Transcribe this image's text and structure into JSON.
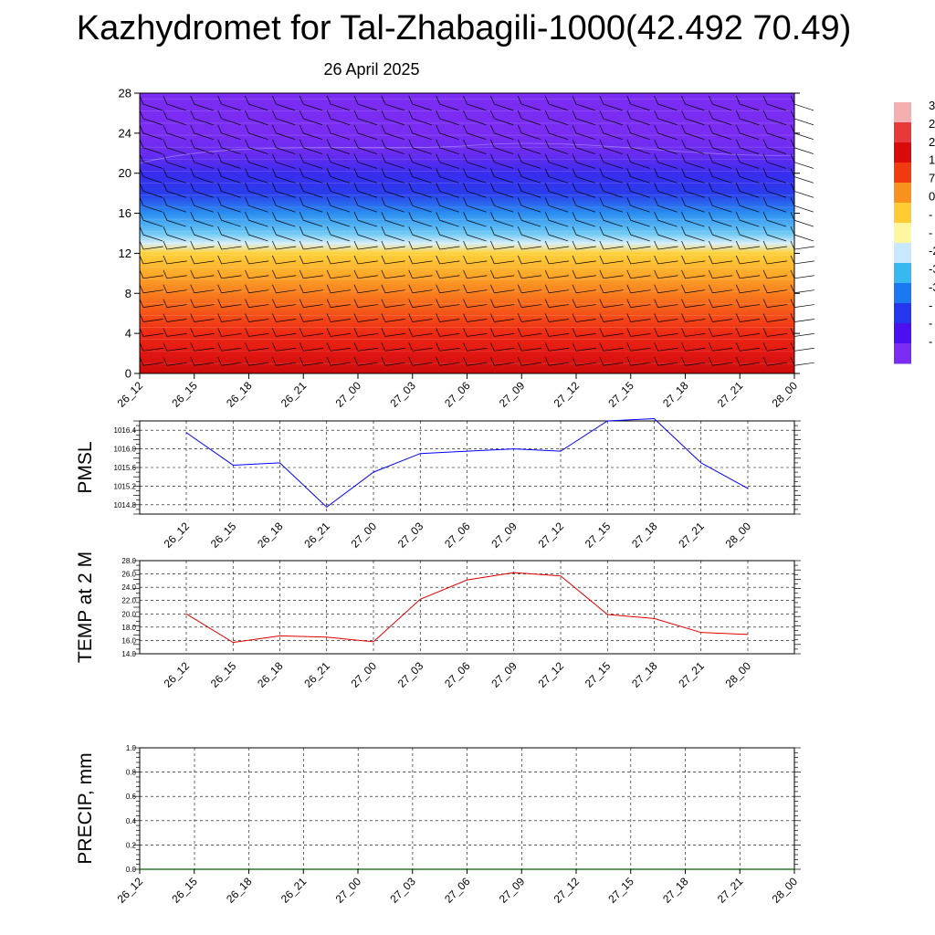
{
  "header": {
    "title": "Kazhydromet for Tal-Zhabagili-1000(42.492 70.49)",
    "subtitle": "26 April 2025"
  },
  "colorbar": {
    "labels": [
      "3",
      "2",
      "2",
      "1",
      "7",
      "0",
      "-",
      "-",
      "-2",
      "-3",
      "-3",
      "-",
      "-",
      "-"
    ],
    "stops": [
      "#f4b0b0",
      "#e8383a",
      "#d80a0a",
      "#f23a10",
      "#f9921c",
      "#ffcc34",
      "#fff7a0",
      "#c8e8ff",
      "#38b8f0",
      "#1c78f0",
      "#2436ee",
      "#4a10f0",
      "#7a2cf2"
    ]
  },
  "chart_data": [
    {
      "type": "heatmap",
      "name": "cross-section",
      "x_ticks": [
        "26_12",
        "26_15",
        "26_18",
        "26_21",
        "27_00",
        "27_03",
        "27_06",
        "27_09",
        "27_12",
        "27_15",
        "27_18",
        "27_21",
        "28_00"
      ],
      "ylim": [
        0,
        28
      ],
      "y_ticks": [
        0,
        4,
        8,
        12,
        16,
        20,
        24,
        28
      ],
      "levels": [
        0,
        2,
        4,
        6,
        8,
        10,
        12,
        13,
        14,
        16,
        18,
        20,
        22,
        24,
        28
      ],
      "level_colors": [
        "#cc0c0a",
        "#e01612",
        "#ee2a14",
        "#f45218",
        "#f87e1e",
        "#fcaa2a",
        "#ffd23a",
        "#d8eef8",
        "#6cc8f4",
        "#2a8ef0",
        "#2a3cec",
        "#3a2cee",
        "#6a2cf0",
        "#7a2cf2",
        "#7a2cf2"
      ],
      "barbs": "wind barbs overlay (black)"
    },
    {
      "type": "line",
      "ylabel": "PMSL",
      "x": [
        "26_12",
        "26_15",
        "26_18",
        "26_21",
        "27_00",
        "27_03",
        "27_06",
        "27_09",
        "27_12",
        "27_15",
        "27_18",
        "27_21",
        "28_00"
      ],
      "y": [
        1016.35,
        1015.65,
        1015.7,
        1014.75,
        1015.5,
        1015.9,
        1015.95,
        1016.0,
        1015.95,
        1016.6,
        1016.65,
        1015.7,
        1015.15
      ],
      "ylim": [
        1014.6,
        1016.6
      ],
      "y_ticks": [
        "1014.8",
        "1015.2",
        "1015.6",
        "1016.0",
        "1016.4"
      ],
      "color": "#0000ff",
      "grid": true
    },
    {
      "type": "line",
      "ylabel": "TEMP at 2 M",
      "x": [
        "26_12",
        "26_15",
        "26_18",
        "26_21",
        "27_00",
        "27_03",
        "27_06",
        "27_09",
        "27_12",
        "27_15",
        "27_18",
        "27_21",
        "28_00"
      ],
      "y": [
        20.0,
        15.7,
        16.7,
        16.5,
        15.8,
        22.2,
        25.1,
        26.2,
        25.7,
        19.9,
        19.3,
        17.2,
        16.9
      ],
      "ylim": [
        14.0,
        28.0
      ],
      "y_ticks": [
        "14.0",
        "16.0",
        "18.0",
        "20.0",
        "22.0",
        "24.0",
        "26.0",
        "28.0"
      ],
      "color": "#e00000",
      "grid": true
    },
    {
      "type": "line",
      "ylabel": "PRECIP, mm",
      "x": [
        "26_12",
        "26_15",
        "26_18",
        "26_21",
        "27_00",
        "27_03",
        "27_06",
        "27_09",
        "27_12",
        "27_15",
        "27_18",
        "27_21",
        "28_00"
      ],
      "y": [
        0,
        0,
        0,
        0,
        0,
        0,
        0,
        0,
        0,
        0,
        0,
        0,
        0
      ],
      "ylim": [
        0.0,
        1.0
      ],
      "y_ticks": [
        "0.0",
        "0.2",
        "0.4",
        "0.6",
        "0.8",
        "1.0"
      ],
      "color": "#006400",
      "grid": true
    }
  ]
}
